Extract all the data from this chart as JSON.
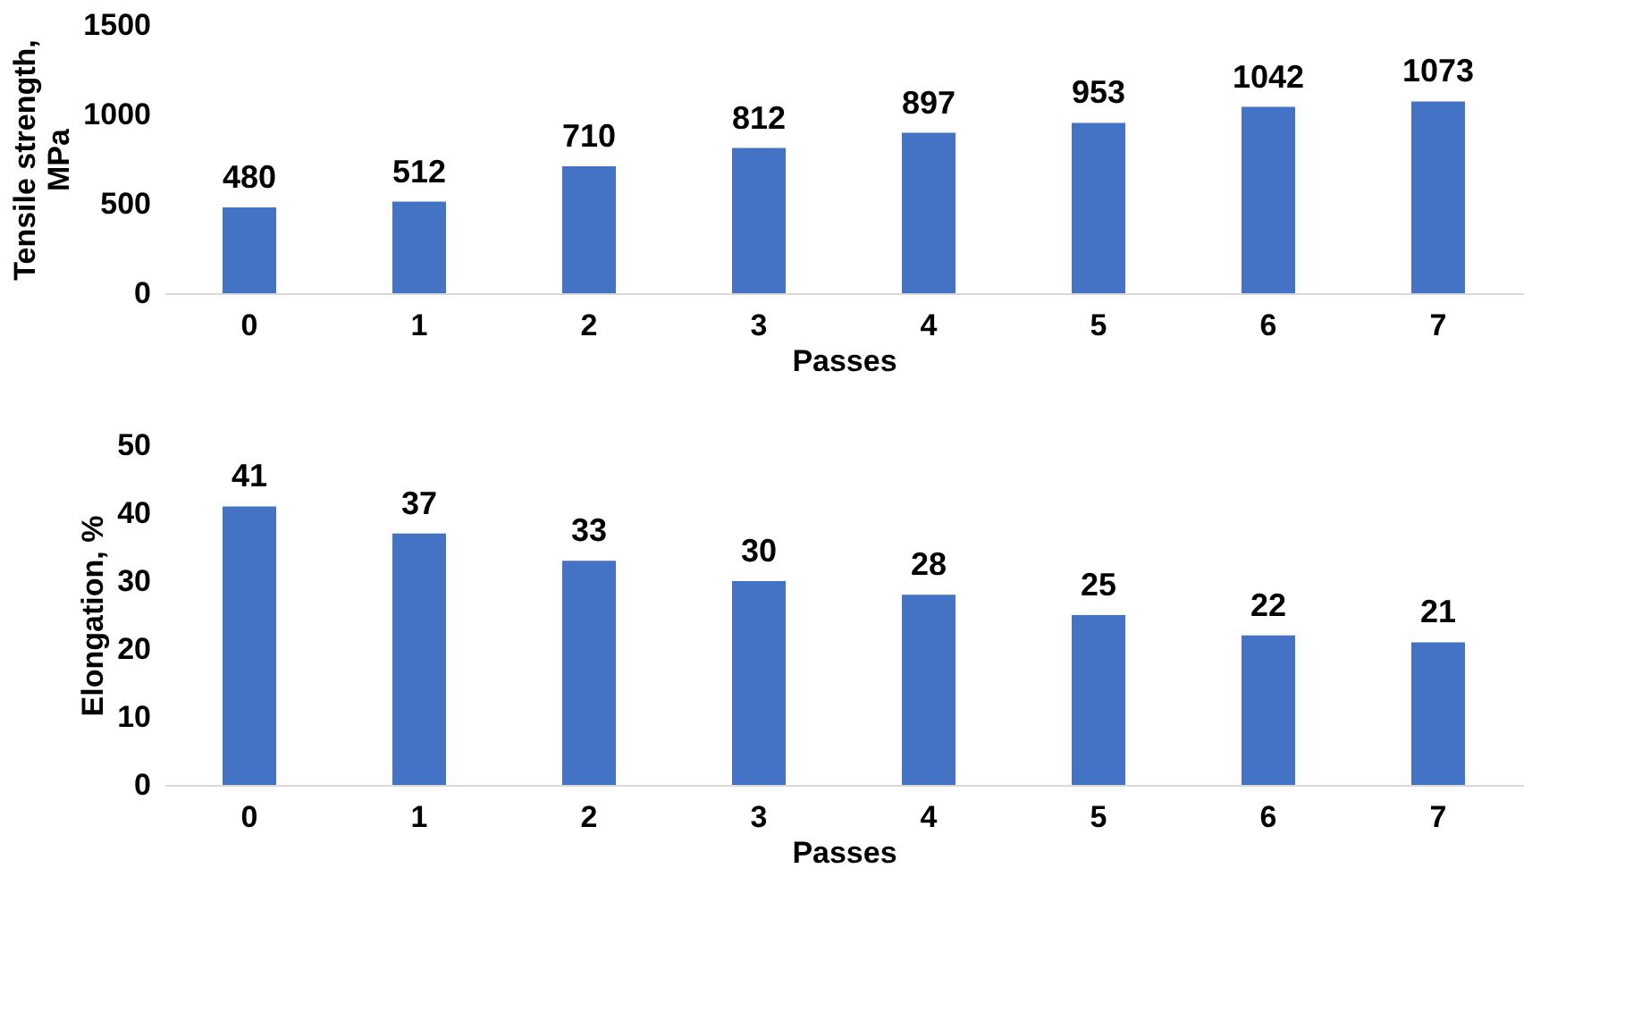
{
  "chart_data": [
    {
      "type": "bar",
      "xlabel": "Passes",
      "ylabel": "Tensile strength, MPa",
      "categories": [
        "0",
        "1",
        "2",
        "3",
        "4",
        "5",
        "6",
        "7"
      ],
      "values": [
        480,
        512,
        710,
        812,
        897,
        953,
        1042,
        1073
      ],
      "color": "#4472c4",
      "ylim": [
        0,
        1500
      ],
      "yticks": [
        0,
        500,
        1000,
        1500
      ],
      "grid": false,
      "data_labels": true
    },
    {
      "type": "bar",
      "xlabel": "Passes",
      "ylabel": "Elongation, %",
      "categories": [
        "0",
        "1",
        "2",
        "3",
        "4",
        "5",
        "6",
        "7"
      ],
      "values": [
        41,
        37,
        33,
        30,
        28,
        25,
        22,
        21
      ],
      "color": "#4472c4",
      "ylim": [
        0,
        50
      ],
      "yticks": [
        0,
        10,
        20,
        30,
        40,
        50
      ],
      "grid": false,
      "data_labels": true
    }
  ]
}
